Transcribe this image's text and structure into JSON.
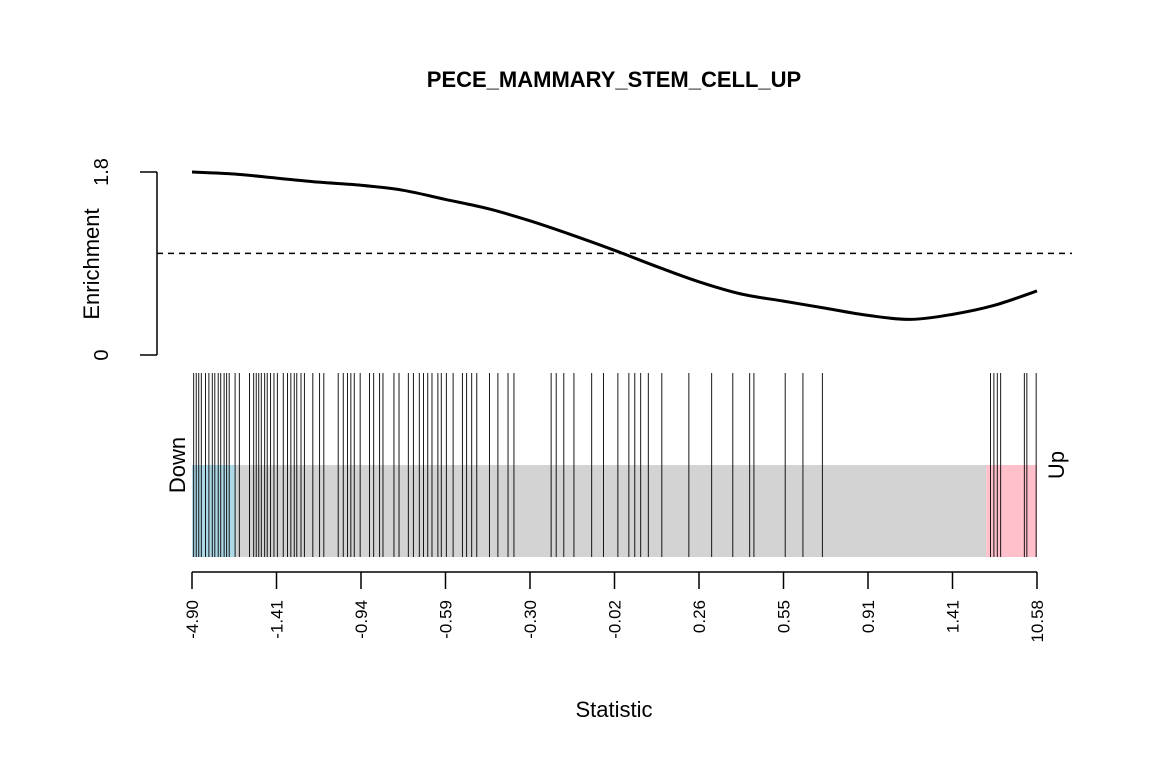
{
  "chart_data": {
    "type": "barcode_enrichment",
    "title": "PECE_MAMMARY_STEM_CELL_UP",
    "xlabel": "Statistic",
    "enrichment": {
      "ylabel": "Enrichment",
      "yticks": [
        "0",
        "1.8"
      ],
      "ylim": [
        0,
        1.8
      ],
      "reference_line": 1.0,
      "curve": [
        {
          "rank": 0.0,
          "value": 1.8
        },
        {
          "rank": 0.05,
          "value": 1.78
        },
        {
          "rank": 0.1,
          "value": 1.74
        },
        {
          "rank": 0.15,
          "value": 1.7
        },
        {
          "rank": 0.2,
          "value": 1.67
        },
        {
          "rank": 0.25,
          "value": 1.62
        },
        {
          "rank": 0.3,
          "value": 1.53
        },
        {
          "rank": 0.35,
          "value": 1.44
        },
        {
          "rank": 0.4,
          "value": 1.32
        },
        {
          "rank": 0.45,
          "value": 1.18
        },
        {
          "rank": 0.5,
          "value": 1.03
        },
        {
          "rank": 0.55,
          "value": 0.87
        },
        {
          "rank": 0.6,
          "value": 0.72
        },
        {
          "rank": 0.65,
          "value": 0.6
        },
        {
          "rank": 0.7,
          "value": 0.53
        },
        {
          "rank": 0.75,
          "value": 0.46
        },
        {
          "rank": 0.8,
          "value": 0.39
        },
        {
          "rank": 0.85,
          "value": 0.35
        },
        {
          "rank": 0.9,
          "value": 0.4
        },
        {
          "rank": 0.95,
          "value": 0.49
        },
        {
          "rank": 1.0,
          "value": 0.63
        }
      ]
    },
    "barcode": {
      "down_label": "Down",
      "up_label": "Up",
      "down_region_end": 0.052,
      "up_region_start": 0.94,
      "down_color": "#add8e6",
      "mid_color": "#d3d3d3",
      "up_color": "#ffc0cb",
      "gene_ranks": [
        0.002,
        0.005,
        0.008,
        0.011,
        0.016,
        0.02,
        0.024,
        0.027,
        0.031,
        0.034,
        0.038,
        0.041,
        0.044,
        0.051,
        0.056,
        0.068,
        0.073,
        0.076,
        0.079,
        0.082,
        0.086,
        0.089,
        0.093,
        0.097,
        0.101,
        0.108,
        0.113,
        0.117,
        0.121,
        0.124,
        0.129,
        0.133,
        0.143,
        0.151,
        0.156,
        0.173,
        0.179,
        0.184,
        0.188,
        0.192,
        0.199,
        0.21,
        0.215,
        0.222,
        0.226,
        0.239,
        0.245,
        0.256,
        0.262,
        0.269,
        0.274,
        0.279,
        0.284,
        0.291,
        0.295,
        0.301,
        0.309,
        0.32,
        0.325,
        0.331,
        0.337,
        0.352,
        0.362,
        0.374,
        0.381,
        0.425,
        0.431,
        0.44,
        0.452,
        0.473,
        0.487,
        0.504,
        0.517,
        0.524,
        0.531,
        0.54,
        0.556,
        0.588,
        0.615,
        0.64,
        0.66,
        0.665,
        0.702,
        0.723,
        0.746,
        0.945,
        0.949,
        0.953,
        0.957,
        0.985,
        0.988,
        0.999
      ]
    },
    "x_ticks": [
      "-4.90",
      "-1.41",
      "-0.94",
      "-0.59",
      "-0.30",
      "-0.02",
      "0.26",
      "0.55",
      "0.91",
      "1.41",
      "10.58"
    ]
  },
  "colors": {
    "curve": "#000000",
    "reference_line": "#000000",
    "barcode_line": "#000000"
  }
}
